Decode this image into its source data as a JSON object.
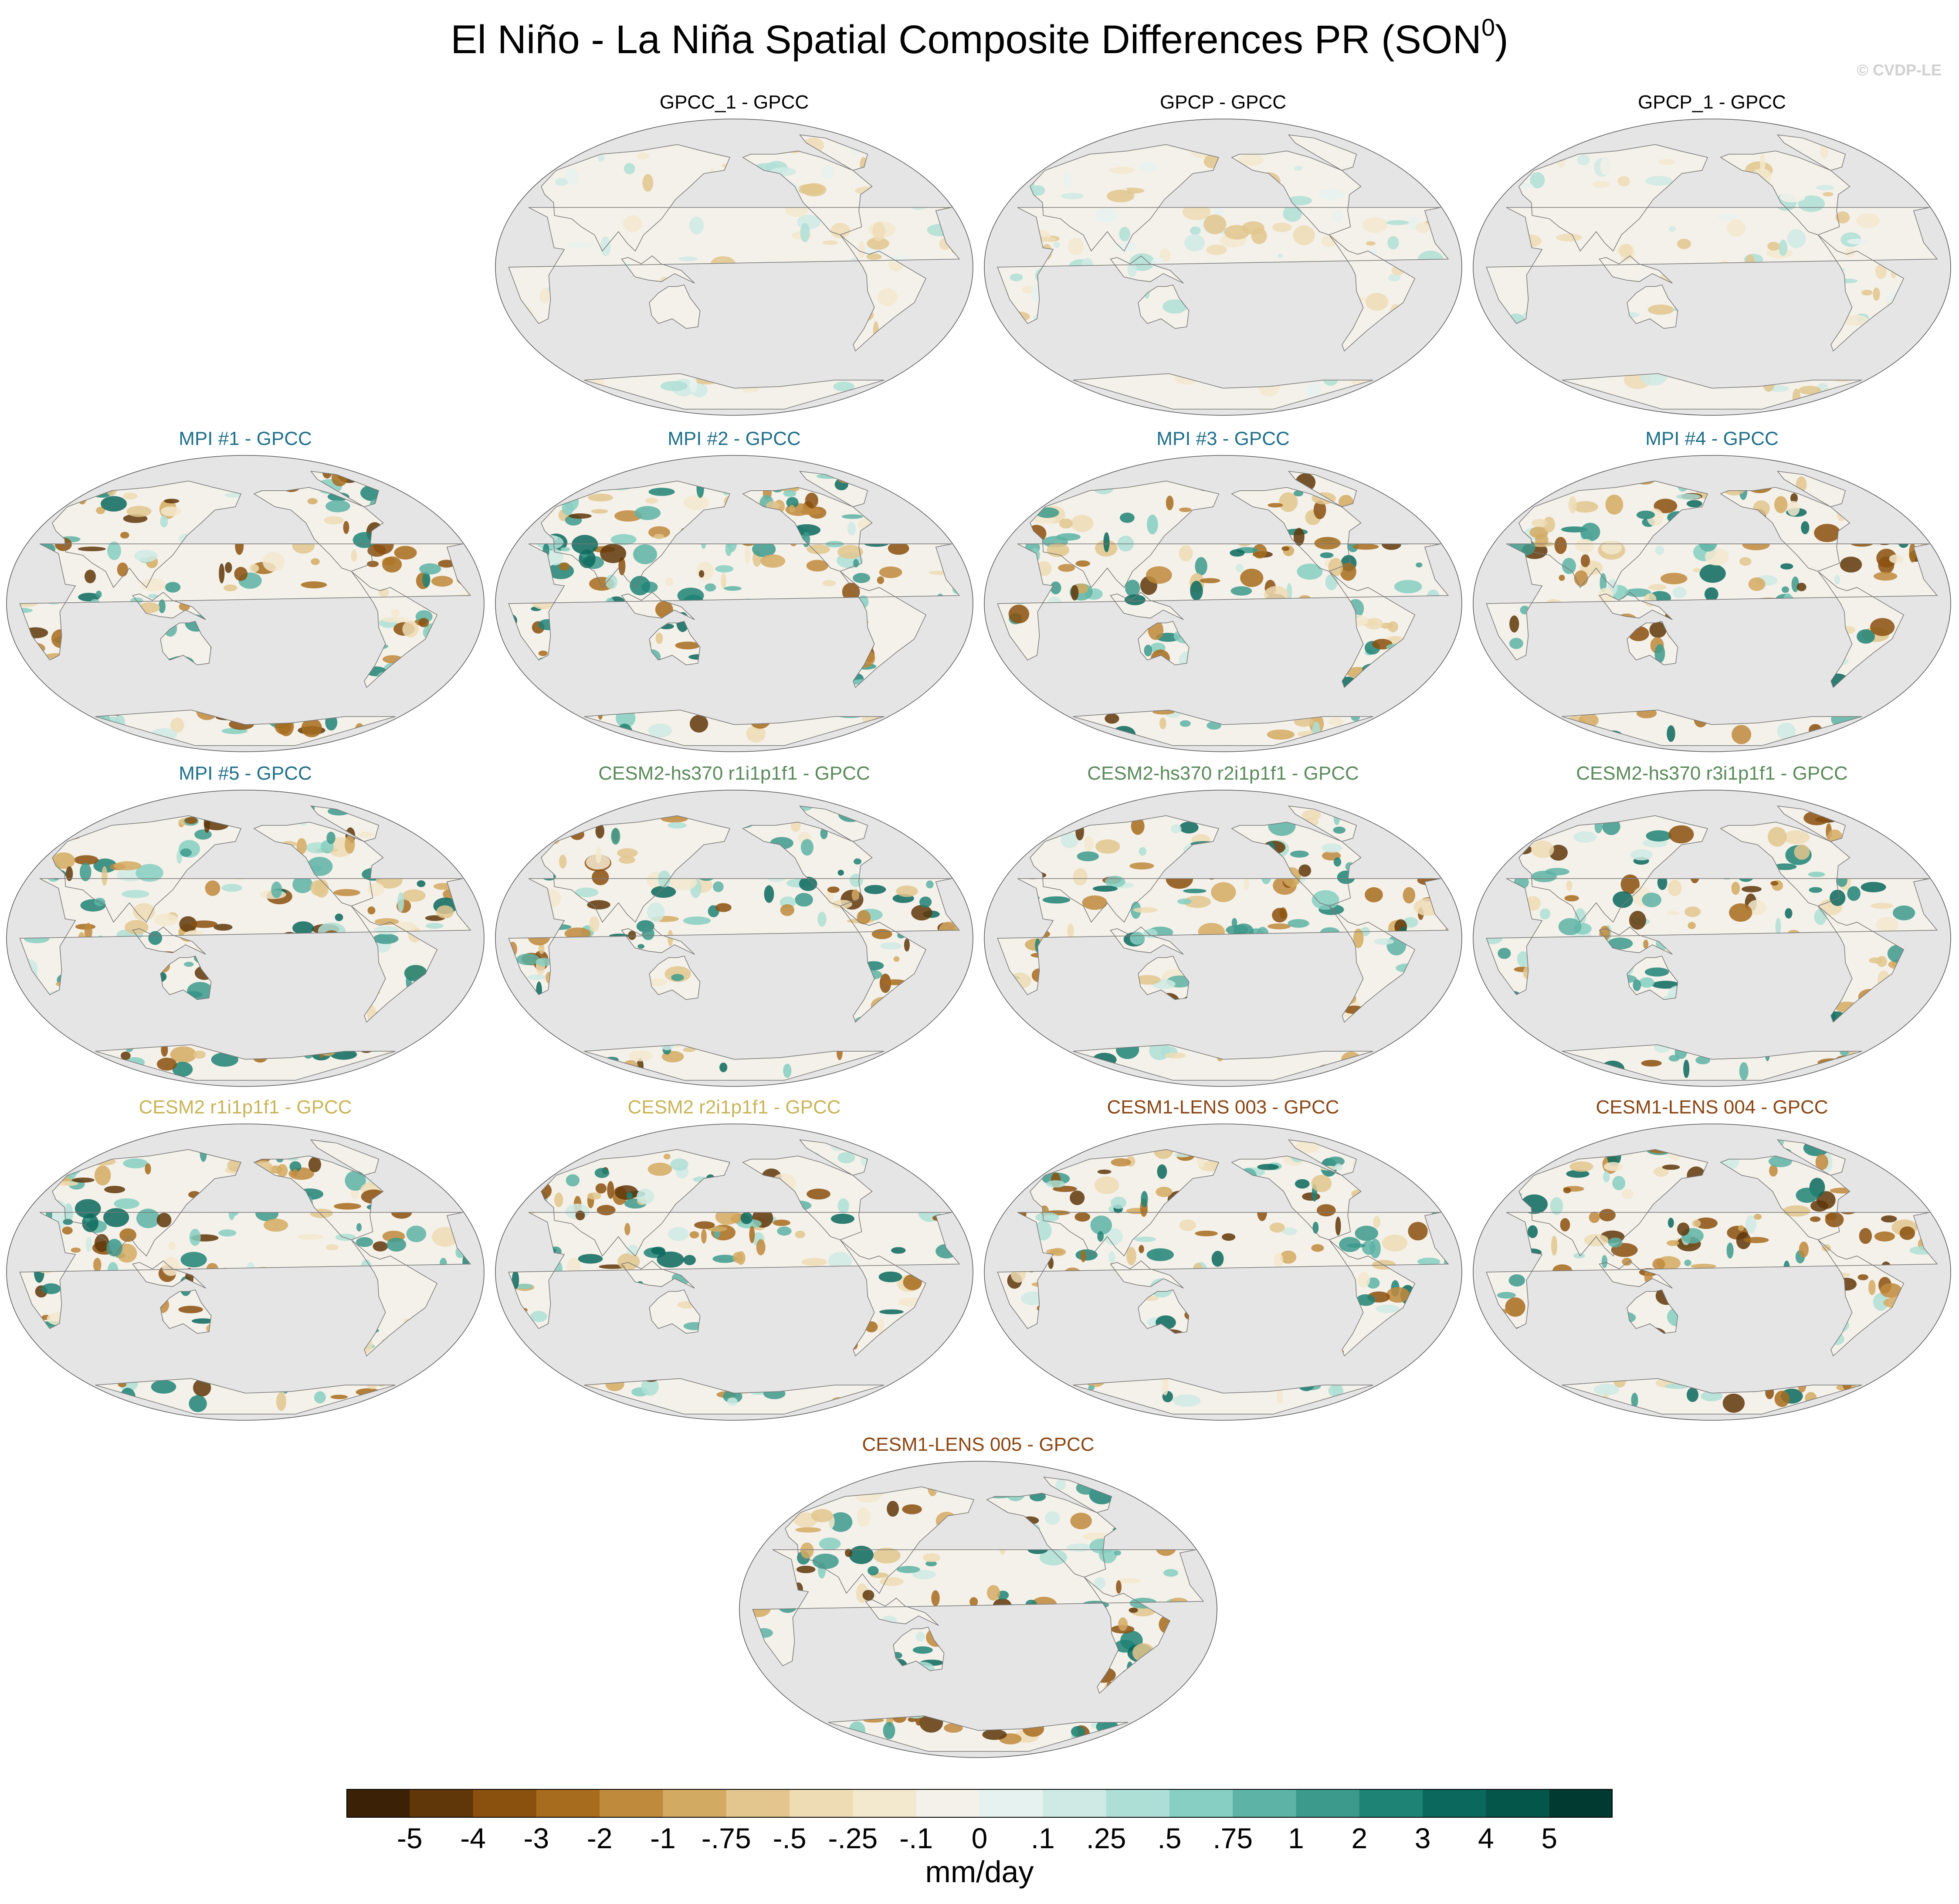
{
  "title": {
    "main": "El Niño - La Niña Spatial Composite Differences PR (SON",
    "sup": "0",
    "close": ")"
  },
  "credit": "© CVDP-LE",
  "panels": [
    {
      "title": "GPCC_1 - GPCC",
      "color": "#000000",
      "palette": "obs"
    },
    {
      "title": "GPCP - GPCC",
      "color": "#000000",
      "palette": "obs"
    },
    {
      "title": "GPCP_1 - GPCC",
      "color": "#000000",
      "palette": "obs"
    },
    {
      "title": "MPI #1 - GPCC",
      "color": "#1f6f8b",
      "palette": "model"
    },
    {
      "title": "MPI #2 - GPCC",
      "color": "#1f6f8b",
      "palette": "model"
    },
    {
      "title": "MPI #3 - GPCC",
      "color": "#1f6f8b",
      "palette": "model"
    },
    {
      "title": "MPI #4 - GPCC",
      "color": "#1f6f8b",
      "palette": "model"
    },
    {
      "title": "MPI #5 - GPCC",
      "color": "#1f6f8b",
      "palette": "model"
    },
    {
      "title": "CESM2-hs370 r1i1p1f1 - GPCC",
      "color": "#5a8a5a",
      "palette": "model"
    },
    {
      "title": "CESM2-hs370 r2i1p1f1 - GPCC",
      "color": "#5a8a5a",
      "palette": "model"
    },
    {
      "title": "CESM2-hs370 r3i1p1f1 - GPCC",
      "color": "#5a8a5a",
      "palette": "model"
    },
    {
      "title": "CESM2 r1i1p1f1 - GPCC",
      "color": "#c9b458",
      "palette": "model"
    },
    {
      "title": "CESM2 r2i1p1f1 - GPCC",
      "color": "#c9b458",
      "palette": "model"
    },
    {
      "title": "CESM1-LENS 003 - GPCC",
      "color": "#8b4513",
      "palette": "model"
    },
    {
      "title": "CESM1-LENS 004 - GPCC",
      "color": "#8b4513",
      "palette": "model"
    },
    {
      "title": "CESM1-LENS 005 - GPCC",
      "color": "#8b4513",
      "palette": "model"
    }
  ],
  "colorbar": {
    "unit": "mm/day",
    "labels": [
      "-5",
      "-4",
      "-3",
      "-2",
      "-1",
      "-.75",
      "-.5",
      "-.25",
      "-.1",
      "0",
      ".1",
      ".25",
      ".5",
      ".75",
      "1",
      "2",
      "3",
      "4",
      "5"
    ],
    "colors": [
      "#3b2106",
      "#5f3709",
      "#8a500e",
      "#a76c1d",
      "#c08a3c",
      "#d3aa62",
      "#e2c68d",
      "#eddcb4",
      "#f3e9cf",
      "#f4f1ea",
      "#e6f2ef",
      "#cfeae4",
      "#aedfd6",
      "#86cfc2",
      "#5db3a6",
      "#3c9a8c",
      "#1e8375",
      "#0b685d",
      "#04564b",
      "#003a30"
    ]
  }
}
